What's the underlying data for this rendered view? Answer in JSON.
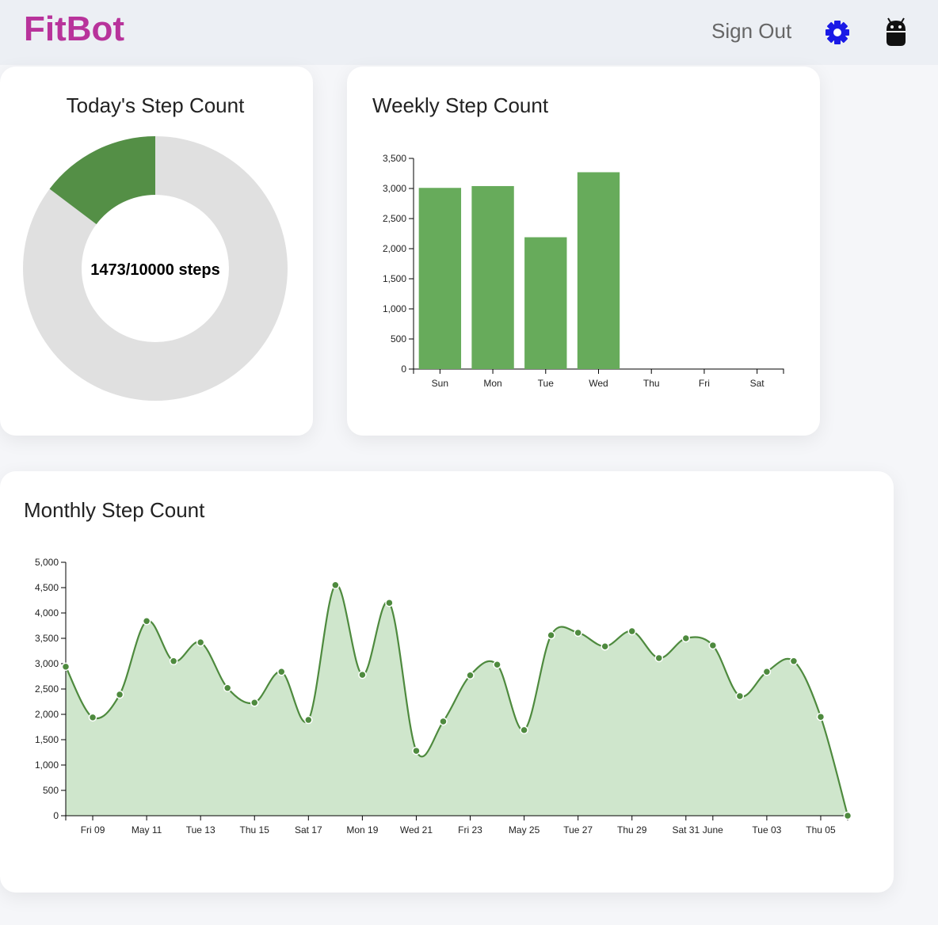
{
  "header": {
    "brand": "FitBot",
    "sign_out": "Sign Out"
  },
  "chart_data": [
    {
      "type": "donut",
      "title": "Today's Step Count",
      "center_label": "1473/10000 steps",
      "value": 1473,
      "goal": 10000,
      "color": "#548f46",
      "track_color": "#e0e0e0"
    },
    {
      "type": "bar",
      "title": "Weekly Step Count",
      "categories": [
        "Sun",
        "Mon",
        "Tue",
        "Wed",
        "Thu",
        "Fri",
        "Sat"
      ],
      "values": [
        3010,
        3040,
        2190,
        3270,
        null,
        null,
        null
      ],
      "color": "#67ab5b",
      "ylim": [
        0,
        3500
      ],
      "yticks": [
        0,
        500,
        {
          "value": 1000,
          "label": "1,000"
        },
        {
          "value": 1500,
          "label": "1,500"
        },
        {
          "value": 2000,
          "label": "2,000"
        },
        {
          "value": 2500,
          "label": "2,500"
        },
        {
          "value": 3000,
          "label": "3,000"
        },
        {
          "value": 3500,
          "label": "3,500"
        }
      ]
    },
    {
      "type": "area",
      "title": "Monthly Step Count",
      "x": [
        "05-08",
        "05-09",
        "05-10",
        "05-11",
        "05-12",
        "05-13",
        "05-14",
        "05-15",
        "05-16",
        "05-17",
        "05-18",
        "05-19",
        "05-20",
        "05-21",
        "05-22",
        "05-23",
        "05-24",
        "05-25",
        "05-26",
        "05-27",
        "05-28",
        "05-29",
        "05-30",
        "05-31",
        "06-01",
        "06-02",
        "06-03",
        "06-04",
        "06-05",
        "06-06"
      ],
      "values": [
        2940,
        1940,
        2390,
        3840,
        3050,
        3420,
        2520,
        2230,
        2840,
        1890,
        4550,
        2780,
        4200,
        1280,
        1860,
        2770,
        2980,
        1690,
        3560,
        3610,
        3340,
        3640,
        3110,
        3500,
        3360,
        2360,
        2840,
        3050,
        1950,
        0
      ],
      "color": "#4e8a3e",
      "fill": "#cfe6cc",
      "xlim": [
        "05-08",
        "06-06"
      ],
      "xticks": [
        {
          "value": "05-09",
          "label": "Fri 09"
        },
        {
          "value": "05-11",
          "label": "May 11"
        },
        {
          "value": "05-13",
          "label": "Tue 13"
        },
        {
          "value": "05-15",
          "label": "Thu 15"
        },
        {
          "value": "05-17",
          "label": "Sat 17"
        },
        {
          "value": "05-19",
          "label": "Mon 19"
        },
        {
          "value": "05-21",
          "label": "Wed 21"
        },
        {
          "value": "05-23",
          "label": "Fri 23"
        },
        {
          "value": "05-25",
          "label": "May 25"
        },
        {
          "value": "05-27",
          "label": "Tue 27"
        },
        {
          "value": "05-29",
          "label": "Thu 29"
        },
        {
          "value": "05-31",
          "label": "Sat 31"
        },
        {
          "value": "06-01",
          "label": "June"
        },
        {
          "value": "06-03",
          "label": "Tue 03"
        },
        {
          "value": "06-05",
          "label": "Thu 05"
        }
      ],
      "ylim": [
        0,
        5000
      ],
      "yticks": [
        0,
        500,
        {
          "value": 1000,
          "label": "1,000"
        },
        {
          "value": 1500,
          "label": "1,500"
        },
        {
          "value": 2000,
          "label": "2,000"
        },
        {
          "value": 2500,
          "label": "2,500"
        },
        {
          "value": 3000,
          "label": "3,000"
        },
        {
          "value": 3500,
          "label": "3,500"
        },
        {
          "value": 4000,
          "label": "4,000"
        },
        {
          "value": 4500,
          "label": "4,500"
        },
        {
          "value": 5000,
          "label": "5,000"
        }
      ]
    }
  ]
}
